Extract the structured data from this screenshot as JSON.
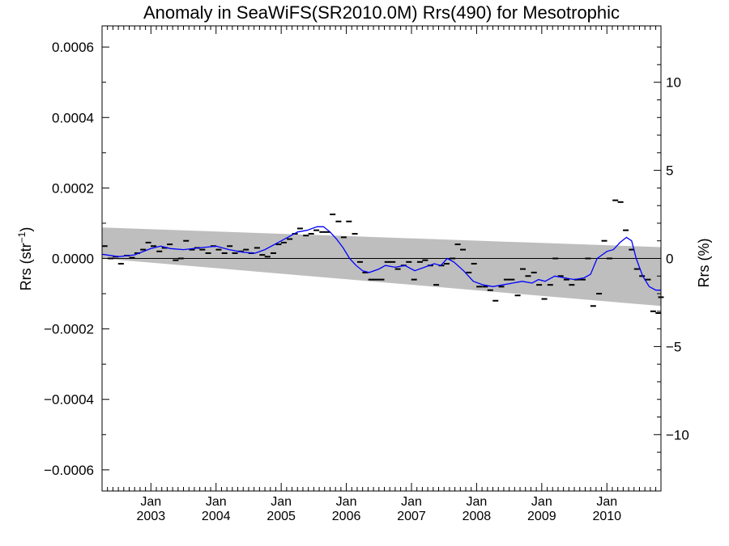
{
  "chart_data": {
    "type": "scatter",
    "title": "Anomaly in SeaWiFS(SR2010.0M) Rrs(490) for Mesotrophic",
    "ylabel_left_main": "Rrs (str",
    "ylabel_left_sup": "−1",
    "ylabel_left_end": ")",
    "ylabel_right": "Rrs (%)",
    "x_range": [
      2002.25,
      2010.83
    ],
    "ylim_left": [
      -0.00066,
      0.00066
    ],
    "ylim_right": [
      -13.2,
      13.2
    ],
    "yticks_left": [
      {
        "v": 0.0006,
        "label": "0.0006"
      },
      {
        "v": 0.0004,
        "label": "0.0004"
      },
      {
        "v": 0.0002,
        "label": "0.0002"
      },
      {
        "v": 0.0,
        "label": "0.0000"
      },
      {
        "v": -0.0002,
        "label": "−0.0002"
      },
      {
        "v": -0.0004,
        "label": "−0.0004"
      },
      {
        "v": -0.0006,
        "label": "−0.0006"
      }
    ],
    "yticks_right": [
      {
        "v": 10,
        "label": "10"
      },
      {
        "v": 5,
        "label": "5"
      },
      {
        "v": 0,
        "label": "0"
      },
      {
        "v": -5,
        "label": "−5"
      },
      {
        "v": -10,
        "label": "−10"
      }
    ],
    "xticks": [
      {
        "x": 2003.0,
        "month": "Jan",
        "year": "2003"
      },
      {
        "x": 2004.0,
        "month": "Jan",
        "year": "2004"
      },
      {
        "x": 2005.0,
        "month": "Jan",
        "year": "2005"
      },
      {
        "x": 2006.0,
        "month": "Jan",
        "year": "2006"
      },
      {
        "x": 2007.0,
        "month": "Jan",
        "year": "2007"
      },
      {
        "x": 2008.0,
        "month": "Jan",
        "year": "2008"
      },
      {
        "x": 2009.0,
        "month": "Jan",
        "year": "2009"
      },
      {
        "x": 2010.0,
        "month": "Jan",
        "year": "2010"
      }
    ],
    "confidence_band": {
      "upper": [
        [
          2002.25,
          8.8e-05
        ],
        [
          2010.83,
          3.2e-05
        ]
      ],
      "lower": [
        [
          2002.25,
          0.0
        ],
        [
          2010.83,
          -0.000135
        ]
      ],
      "color": "#bebebe"
    },
    "monthly_points": [
      [
        2002.29,
        3.5e-05
      ],
      [
        2002.38,
        0.0
      ],
      [
        2002.46,
        5e-06
      ],
      [
        2002.54,
        -1.5e-05
      ],
      [
        2002.63,
        8e-06
      ],
      [
        2002.71,
        2e-06
      ],
      [
        2002.79,
        1.5e-05
      ],
      [
        2002.88,
        2.5e-05
      ],
      [
        2002.96,
        4.5e-05
      ],
      [
        2003.04,
        3.5e-05
      ],
      [
        2003.13,
        2e-05
      ],
      [
        2003.21,
        3e-05
      ],
      [
        2003.29,
        4e-05
      ],
      [
        2003.38,
        -5e-06
      ],
      [
        2003.46,
        0.0
      ],
      [
        2003.54,
        5e-05
      ],
      [
        2003.63,
        2.5e-05
      ],
      [
        2003.71,
        3e-05
      ],
      [
        2003.79,
        2.5e-05
      ],
      [
        2003.88,
        1.5e-05
      ],
      [
        2003.96,
        3.5e-05
      ],
      [
        2004.04,
        2.5e-05
      ],
      [
        2004.13,
        1.5e-05
      ],
      [
        2004.21,
        3.5e-05
      ],
      [
        2004.29,
        1.5e-05
      ],
      [
        2004.38,
        2e-05
      ],
      [
        2004.46,
        2.5e-05
      ],
      [
        2004.54,
        1.5e-05
      ],
      [
        2004.63,
        3e-05
      ],
      [
        2004.71,
        1e-05
      ],
      [
        2004.79,
        5e-06
      ],
      [
        2004.88,
        1.5e-05
      ],
      [
        2004.96,
        4e-05
      ],
      [
        2005.04,
        4.5e-05
      ],
      [
        2005.13,
        5.5e-05
      ],
      [
        2005.21,
        7e-05
      ],
      [
        2005.29,
        8.5e-05
      ],
      [
        2005.38,
        6.5e-05
      ],
      [
        2005.46,
        7e-05
      ],
      [
        2005.54,
        8e-05
      ],
      [
        2005.63,
        7.5e-05
      ],
      [
        2005.71,
        7.5e-05
      ],
      [
        2005.79,
        0.000125
      ],
      [
        2005.88,
        0.000105
      ],
      [
        2005.96,
        6e-05
      ],
      [
        2006.04,
        0.000105
      ],
      [
        2006.13,
        7e-05
      ],
      [
        2006.21,
        -1e-05
      ],
      [
        2006.29,
        -4e-05
      ],
      [
        2006.38,
        -6e-05
      ],
      [
        2006.46,
        -6e-05
      ],
      [
        2006.54,
        -6e-05
      ],
      [
        2006.63,
        -1e-05
      ],
      [
        2006.71,
        -1e-05
      ],
      [
        2006.79,
        -3e-05
      ],
      [
        2006.88,
        -2e-05
      ],
      [
        2006.96,
        -1e-05
      ],
      [
        2007.04,
        -6e-05
      ],
      [
        2007.13,
        -1e-05
      ],
      [
        2007.21,
        -5e-06
      ],
      [
        2007.29,
        -2e-05
      ],
      [
        2007.38,
        -7.5e-05
      ],
      [
        2007.46,
        -2e-05
      ],
      [
        2007.54,
        -1.5e-05
      ],
      [
        2007.63,
        0.0
      ],
      [
        2007.71,
        4e-05
      ],
      [
        2007.79,
        2.5e-05
      ],
      [
        2007.88,
        -4e-05
      ],
      [
        2007.96,
        -1.5e-05
      ],
      [
        2008.04,
        -8e-05
      ],
      [
        2008.13,
        -8e-05
      ],
      [
        2008.21,
        -9e-05
      ],
      [
        2008.29,
        -0.00012
      ],
      [
        2008.38,
        -8e-05
      ],
      [
        2008.46,
        -6e-05
      ],
      [
        2008.54,
        -6e-05
      ],
      [
        2008.63,
        -0.000105
      ],
      [
        2008.71,
        -3e-05
      ],
      [
        2008.79,
        -5e-05
      ],
      [
        2008.88,
        -4e-05
      ],
      [
        2008.96,
        -7.5e-05
      ],
      [
        2009.04,
        -0.000115
      ],
      [
        2009.13,
        -7.5e-05
      ],
      [
        2009.21,
        0.0
      ],
      [
        2009.29,
        -5e-05
      ],
      [
        2009.38,
        -6e-05
      ],
      [
        2009.46,
        -7.5e-05
      ],
      [
        2009.54,
        -6e-05
      ],
      [
        2009.63,
        -6e-05
      ],
      [
        2009.71,
        0.0
      ],
      [
        2009.79,
        -0.000135
      ],
      [
        2009.88,
        -0.0001
      ],
      [
        2009.96,
        5e-05
      ],
      [
        2010.04,
        0.0
      ],
      [
        2010.13,
        0.000165
      ],
      [
        2010.21,
        0.00016
      ],
      [
        2010.29,
        8e-05
      ],
      [
        2010.38,
        2.5e-05
      ],
      [
        2010.46,
        -3e-05
      ],
      [
        2010.54,
        -5e-05
      ],
      [
        2010.63,
        -6e-05
      ],
      [
        2010.71,
        -0.00015
      ],
      [
        2010.79,
        -0.000155
      ],
      [
        2010.83,
        -0.00011
      ]
    ],
    "running_mean": [
      [
        2002.25,
        1.2e-05
      ],
      [
        2002.5,
        5e-06
      ],
      [
        2002.75,
        1e-05
      ],
      [
        2003.0,
        2.8e-05
      ],
      [
        2003.15,
        3.5e-05
      ],
      [
        2003.3,
        2.8e-05
      ],
      [
        2003.5,
        2.5e-05
      ],
      [
        2003.75,
        3e-05
      ],
      [
        2004.0,
        3.5e-05
      ],
      [
        2004.2,
        2.5e-05
      ],
      [
        2004.4,
        1.8e-05
      ],
      [
        2004.6,
        1.5e-05
      ],
      [
        2004.75,
        2.5e-05
      ],
      [
        2004.95,
        4.5e-05
      ],
      [
        2005.1,
        6e-05
      ],
      [
        2005.25,
        7.5e-05
      ],
      [
        2005.4,
        8e-05
      ],
      [
        2005.55,
        9e-05
      ],
      [
        2005.65,
        9e-05
      ],
      [
        2005.75,
        7.5e-05
      ],
      [
        2005.85,
        5.5e-05
      ],
      [
        2005.95,
        3e-05
      ],
      [
        2006.05,
        0.0
      ],
      [
        2006.15,
        -2e-05
      ],
      [
        2006.25,
        -3.5e-05
      ],
      [
        2006.35,
        -4e-05
      ],
      [
        2006.5,
        -3e-05
      ],
      [
        2006.6,
        -2e-05
      ],
      [
        2006.75,
        -2.5e-05
      ],
      [
        2006.9,
        -2e-05
      ],
      [
        2007.05,
        -3.5e-05
      ],
      [
        2007.2,
        -2.5e-05
      ],
      [
        2007.35,
        -1.5e-05
      ],
      [
        2007.45,
        -2e-05
      ],
      [
        2007.55,
        0.0
      ],
      [
        2007.65,
        -1e-05
      ],
      [
        2007.8,
        -3.5e-05
      ],
      [
        2007.95,
        -6.5e-05
      ],
      [
        2008.1,
        -7.5e-05
      ],
      [
        2008.25,
        -8e-05
      ],
      [
        2008.4,
        -7.5e-05
      ],
      [
        2008.55,
        -7e-05
      ],
      [
        2008.7,
        -6.5e-05
      ],
      [
        2008.85,
        -7e-05
      ],
      [
        2008.95,
        -6e-05
      ],
      [
        2009.05,
        -6.5e-05
      ],
      [
        2009.2,
        -5e-05
      ],
      [
        2009.35,
        -5.5e-05
      ],
      [
        2009.5,
        -6e-05
      ],
      [
        2009.65,
        -5.5e-05
      ],
      [
        2009.75,
        -4.5e-05
      ],
      [
        2009.85,
        0.0
      ],
      [
        2010.0,
        2e-05
      ],
      [
        2010.1,
        2.5e-05
      ],
      [
        2010.2,
        4.5e-05
      ],
      [
        2010.3,
        6e-05
      ],
      [
        2010.38,
        5e-05
      ],
      [
        2010.45,
        0.0
      ],
      [
        2010.55,
        -5e-05
      ],
      [
        2010.65,
        -8e-05
      ],
      [
        2010.75,
        -9e-05
      ],
      [
        2010.83,
        -9e-05
      ]
    ],
    "mean_color": "#0000ff",
    "point_color": "#000000",
    "grid": false
  }
}
